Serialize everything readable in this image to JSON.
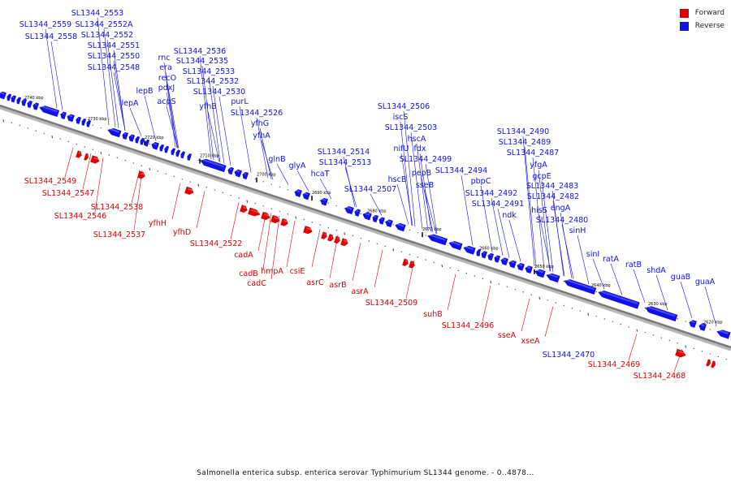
{
  "colors": {
    "forward": "#e00000",
    "reverse": "#1010e8",
    "axis": "#7a7a7a",
    "tick": "#000000"
  },
  "legend": [
    {
      "label": "Forward",
      "color": "#e00000"
    },
    {
      "label": "Reverse",
      "color": "#1010e8"
    }
  ],
  "axis_labels": [
    "2740 kbp",
    "2730 kbp",
    "2720 kbp",
    "2710 kbp",
    "2700 kbp",
    "2690 kbp",
    "2680 kbp",
    "2670 kbp",
    "2660 kbp",
    "2650 kbp",
    "2640 kbp",
    "2630 kbp",
    "2620 kbp"
  ],
  "reverse_labels": [
    "SL1344_2553",
    "SL1344_2559",
    "SL1344_2552A",
    "SL1344_2558",
    "SL1344_2552",
    "SL1344_2551",
    "SL1344_2550",
    "SL1344_2548",
    "lepB",
    "lepA",
    "rnc",
    "era",
    "recO",
    "pdxJ",
    "acpS",
    "SL1344_2536",
    "SL1344_2535",
    "SL1344_2533",
    "SL1344_2532",
    "SL1344_2530",
    "yfhB",
    "purL",
    "SL1344_2526",
    "yfhG",
    "yfhA",
    "glnB",
    "glyA",
    "SL1344_2514",
    "SL1344_2513",
    "hcaT",
    "SL1344_2507",
    "SL1344_2506",
    "iscS",
    "SL1344_2503",
    "hscA",
    "nifU",
    "fdx",
    "SL1344_2499",
    "hscB",
    "pepB",
    "sseB",
    "SL1344_2494",
    "pbpC",
    "SL1344_2492",
    "SL1344_2491",
    "ndk",
    "SL1344_2490",
    "SL1344_2489",
    "SL1344_2487",
    "yfgA",
    "gcpE",
    "SL1344_2483",
    "SL1344_2482",
    "engA",
    "hisS",
    "SL1344_2480",
    "sinH",
    "sinI",
    "ratA",
    "ratB",
    "shdA",
    "guaB",
    "guaA",
    "SL1344_2470"
  ],
  "forward_labels": [
    "SL1344_2549",
    "SL1344_2547",
    "SL1344_2546",
    "SL1344_2538",
    "SL1344_2537",
    "yfhH",
    "yfhD",
    "SL1344_2522",
    "cadA",
    "cadB",
    "cadC",
    "hmpA",
    "csiE",
    "asrC",
    "asrB",
    "asrA",
    "SL1344_2509",
    "suhB",
    "SL1344_2496",
    "sseA",
    "xseA",
    "SL1344_2469",
    "SL1344_2468"
  ],
  "caption": "Salmonella enterica subsp. enterica serovar Typhimurium SL1344 genome. - 0..4878..."
}
